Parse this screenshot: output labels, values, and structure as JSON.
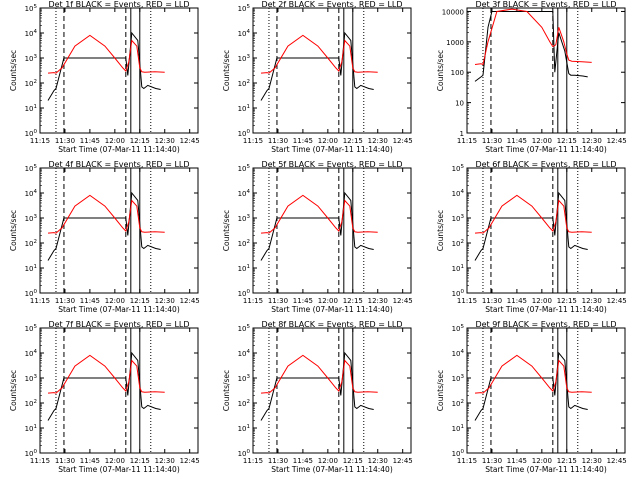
{
  "chart_data": [
    {
      "type": "line",
      "title": "Det 1f BLACK = Events, RED = LLD",
      "xlabel": "Start Time (07-Mar-11 11:14:40)",
      "ylabel": "Counts/sec",
      "y_scale": "log",
      "ylim": [
        1,
        100000
      ],
      "xlim": [
        "11:15",
        "12:50"
      ],
      "x_ticks": [
        "11:15",
        "11:30",
        "11:45",
        "12:00",
        "12:15",
        "12:30",
        "12:45"
      ],
      "y_ticks": [
        "10^0",
        "10^1",
        "10^2",
        "10^3",
        "10^4",
        "10^5"
      ],
      "series": [
        {
          "color": "#000000",
          "x": [
            11.33,
            11.39,
            11.41,
            11.49,
            12.11,
            12.13,
            12.17,
            12.23,
            12.27,
            12.29,
            12.33,
            12.41,
            12.46
          ],
          "y": [
            20,
            50,
            60,
            1000,
            1000,
            200,
            10000,
            5000,
            70,
            60,
            80,
            60,
            55
          ]
        },
        {
          "color": "#ff0000",
          "x": [
            11.33,
            11.39,
            11.41,
            11.47,
            11.6,
            11.75,
            11.9,
            12.0,
            12.08,
            12.11,
            12.14,
            12.17,
            12.22,
            12.25,
            12.27,
            12.3,
            12.4,
            12.5
          ],
          "y": [
            250,
            260,
            250,
            400,
            3000,
            8000,
            3000,
            1000,
            400,
            300,
            700,
            5000,
            3000,
            400,
            280,
            270,
            280,
            270
          ]
        }
      ]
    },
    {
      "type": "line",
      "title": "Det 2f BLACK = Events, RED = LLD",
      "xlabel": "Start Time (07-Mar-11 11:14:40)",
      "ylabel": "Counts/sec",
      "y_scale": "log",
      "ylim": [
        1,
        100000
      ],
      "xlim": [
        "11:15",
        "12:50"
      ],
      "x_ticks": [
        "11:15",
        "11:30",
        "11:45",
        "12:00",
        "12:15",
        "12:30",
        "12:45"
      ],
      "y_ticks": [
        "10^0",
        "10^1",
        "10^2",
        "10^3",
        "10^4",
        "10^5"
      ],
      "series": [
        {
          "color": "#000000",
          "x": [
            11.33,
            11.39,
            11.41,
            11.49,
            12.11,
            12.13,
            12.17,
            12.23,
            12.27,
            12.29,
            12.33,
            12.41,
            12.46
          ],
          "y": [
            20,
            50,
            60,
            1000,
            1000,
            200,
            10000,
            5000,
            70,
            60,
            80,
            60,
            55
          ]
        },
        {
          "color": "#ff0000",
          "x": [
            11.33,
            11.39,
            11.41,
            11.47,
            11.6,
            11.75,
            11.9,
            12.0,
            12.08,
            12.11,
            12.14,
            12.17,
            12.22,
            12.25,
            12.27,
            12.3,
            12.4,
            12.5
          ],
          "y": [
            250,
            260,
            250,
            400,
            3000,
            8000,
            3000,
            1000,
            400,
            300,
            700,
            5000,
            3000,
            400,
            280,
            270,
            280,
            270
          ]
        }
      ]
    },
    {
      "type": "line",
      "title": "Det 3f BLACK = Events, RED = LLD",
      "xlabel": "Start Time (07-Mar-11 11:14:40)",
      "ylabel": "Counts/sec",
      "y_scale": "log",
      "ylim": [
        1,
        13000
      ],
      "xlim": [
        "11:15",
        "12:50"
      ],
      "x_ticks": [
        "11:15",
        "11:30",
        "11:45",
        "12:00",
        "12:15",
        "12:30",
        "12:45"
      ],
      "y_ticks": [
        "1",
        "10",
        "100",
        "1000",
        "10000"
      ],
      "series": [
        {
          "color": "#000000",
          "x": [
            11.33,
            11.39,
            11.41,
            11.46,
            11.5,
            12.11,
            12.13,
            12.17,
            12.23,
            12.27,
            12.29,
            12.33,
            12.41,
            12.46
          ],
          "y": [
            50,
            70,
            80,
            3000,
            10000,
            10000,
            100,
            2000,
            500,
            90,
            80,
            80,
            75,
            70
          ]
        },
        {
          "color": "#ff0000",
          "x": [
            11.33,
            11.39,
            11.41,
            11.46,
            11.55,
            11.7,
            11.85,
            12.0,
            12.08,
            12.11,
            12.14,
            12.17,
            12.22,
            12.25,
            12.27,
            12.3,
            12.4,
            12.5
          ],
          "y": [
            180,
            190,
            180,
            1000,
            10000,
            12000,
            10000,
            3000,
            1000,
            700,
            800,
            3000,
            1000,
            400,
            250,
            230,
            220,
            210
          ]
        }
      ]
    },
    {
      "type": "line",
      "title": "Det 4f BLACK = Events, RED = LLD",
      "xlabel": "Start Time (07-Mar-11 11:14:40)",
      "ylabel": "Counts/sec",
      "y_scale": "log",
      "ylim": [
        1,
        100000
      ],
      "xlim": [
        "11:15",
        "12:50"
      ],
      "x_ticks": [
        "11:15",
        "11:30",
        "11:45",
        "12:00",
        "12:15",
        "12:30",
        "12:45"
      ],
      "y_ticks": [
        "10^0",
        "10^1",
        "10^2",
        "10^3",
        "10^4",
        "10^5"
      ],
      "series": [
        {
          "color": "#000000",
          "x": [
            11.33,
            11.39,
            11.41,
            11.49,
            12.11,
            12.13,
            12.17,
            12.23,
            12.27,
            12.29,
            12.33,
            12.41,
            12.46
          ],
          "y": [
            20,
            50,
            60,
            1000,
            1000,
            200,
            10000,
            5000,
            70,
            60,
            80,
            60,
            55
          ]
        },
        {
          "color": "#ff0000",
          "x": [
            11.33,
            11.39,
            11.41,
            11.47,
            11.6,
            11.75,
            11.9,
            12.0,
            12.08,
            12.11,
            12.14,
            12.17,
            12.22,
            12.25,
            12.27,
            12.3,
            12.4,
            12.5
          ],
          "y": [
            250,
            260,
            250,
            400,
            3000,
            8000,
            3000,
            1000,
            400,
            300,
            700,
            5000,
            3000,
            400,
            280,
            270,
            280,
            270
          ]
        }
      ]
    },
    {
      "type": "line",
      "title": "Det 5f BLACK = Events, RED = LLD",
      "xlabel": "Start Time (07-Mar-11 11:14:40)",
      "ylabel": "Counts/sec",
      "y_scale": "log",
      "ylim": [
        1,
        100000
      ],
      "xlim": [
        "11:15",
        "12:50"
      ],
      "x_ticks": [
        "11:15",
        "11:30",
        "11:45",
        "12:00",
        "12:15",
        "12:30",
        "12:45"
      ],
      "y_ticks": [
        "10^0",
        "10^1",
        "10^2",
        "10^3",
        "10^4",
        "10^5"
      ],
      "series": [
        {
          "color": "#000000",
          "x": [
            11.33,
            11.39,
            11.41,
            11.49,
            12.11,
            12.13,
            12.17,
            12.23,
            12.27,
            12.29,
            12.33,
            12.41,
            12.46
          ],
          "y": [
            20,
            50,
            60,
            1000,
            1000,
            200,
            10000,
            5000,
            70,
            60,
            80,
            60,
            55
          ]
        },
        {
          "color": "#ff0000",
          "x": [
            11.33,
            11.39,
            11.41,
            11.47,
            11.6,
            11.75,
            11.9,
            12.0,
            12.08,
            12.11,
            12.14,
            12.17,
            12.22,
            12.25,
            12.27,
            12.3,
            12.4,
            12.5
          ],
          "y": [
            250,
            260,
            250,
            400,
            3000,
            8000,
            3000,
            1000,
            400,
            300,
            700,
            5000,
            3000,
            400,
            280,
            270,
            280,
            270
          ]
        }
      ]
    },
    {
      "type": "line",
      "title": "Det 6f BLACK = Events, RED = LLD",
      "xlabel": "Start Time (07-Mar-11 11:14:40)",
      "ylabel": "Counts/sec",
      "y_scale": "log",
      "ylim": [
        1,
        100000
      ],
      "xlim": [
        "11:15",
        "12:50"
      ],
      "x_ticks": [
        "11:15",
        "11:30",
        "11:45",
        "12:00",
        "12:15",
        "12:30",
        "12:45"
      ],
      "y_ticks": [
        "10^0",
        "10^1",
        "10^2",
        "10^3",
        "10^4",
        "10^5"
      ],
      "series": [
        {
          "color": "#000000",
          "x": [
            11.33,
            11.39,
            11.41,
            11.49,
            12.11,
            12.13,
            12.17,
            12.23,
            12.27,
            12.29,
            12.33,
            12.41,
            12.46
          ],
          "y": [
            20,
            50,
            60,
            1000,
            1000,
            200,
            10000,
            5000,
            70,
            60,
            80,
            60,
            55
          ]
        },
        {
          "color": "#ff0000",
          "x": [
            11.33,
            11.39,
            11.41,
            11.47,
            11.6,
            11.75,
            11.9,
            12.0,
            12.08,
            12.11,
            12.14,
            12.17,
            12.22,
            12.25,
            12.27,
            12.3,
            12.4,
            12.5
          ],
          "y": [
            250,
            260,
            250,
            400,
            3000,
            8000,
            3000,
            1000,
            400,
            300,
            700,
            5000,
            3000,
            400,
            280,
            270,
            280,
            270
          ]
        }
      ]
    },
    {
      "type": "line",
      "title": "Det 7f BLACK = Events, RED = LLD",
      "xlabel": "Start Time (07-Mar-11 11:14:40)",
      "ylabel": "Counts/sec",
      "y_scale": "log",
      "ylim": [
        1,
        100000
      ],
      "xlim": [
        "11:15",
        "12:50"
      ],
      "x_ticks": [
        "11:15",
        "11:30",
        "11:45",
        "12:00",
        "12:15",
        "12:30",
        "12:45"
      ],
      "y_ticks": [
        "10^0",
        "10^1",
        "10^2",
        "10^3",
        "10^4",
        "10^5"
      ],
      "series": [
        {
          "color": "#000000",
          "x": [
            11.33,
            11.39,
            11.41,
            11.49,
            12.11,
            12.13,
            12.17,
            12.23,
            12.27,
            12.29,
            12.33,
            12.41,
            12.46
          ],
          "y": [
            20,
            50,
            60,
            1000,
            1000,
            200,
            10000,
            5000,
            70,
            60,
            80,
            60,
            55
          ]
        },
        {
          "color": "#ff0000",
          "x": [
            11.33,
            11.39,
            11.41,
            11.47,
            11.6,
            11.75,
            11.9,
            12.0,
            12.08,
            12.11,
            12.14,
            12.17,
            12.22,
            12.25,
            12.27,
            12.3,
            12.4,
            12.5
          ],
          "y": [
            250,
            260,
            250,
            400,
            3000,
            8000,
            3000,
            1000,
            400,
            300,
            700,
            5000,
            3000,
            400,
            280,
            270,
            280,
            270
          ]
        }
      ]
    },
    {
      "type": "line",
      "title": "Det 8f BLACK = Events, RED = LLD",
      "xlabel": "Start Time (07-Mar-11 11:14:40)",
      "ylabel": "Counts/sec",
      "y_scale": "log",
      "ylim": [
        1,
        100000
      ],
      "xlim": [
        "11:15",
        "12:50"
      ],
      "x_ticks": [
        "11:15",
        "11:30",
        "11:45",
        "12:00",
        "12:15",
        "12:30",
        "12:45"
      ],
      "y_ticks": [
        "10^0",
        "10^1",
        "10^2",
        "10^3",
        "10^4",
        "10^5"
      ],
      "series": [
        {
          "color": "#000000",
          "x": [
            11.33,
            11.39,
            11.41,
            11.49,
            12.11,
            12.13,
            12.17,
            12.23,
            12.27,
            12.29,
            12.33,
            12.41,
            12.46
          ],
          "y": [
            20,
            50,
            60,
            1000,
            1000,
            200,
            10000,
            5000,
            70,
            60,
            80,
            60,
            55
          ]
        },
        {
          "color": "#ff0000",
          "x": [
            11.33,
            11.39,
            11.41,
            11.47,
            11.6,
            11.75,
            11.9,
            12.0,
            12.08,
            12.11,
            12.14,
            12.17,
            12.22,
            12.25,
            12.27,
            12.3,
            12.4,
            12.5
          ],
          "y": [
            250,
            260,
            250,
            400,
            3000,
            8000,
            3000,
            1000,
            400,
            300,
            700,
            5000,
            3000,
            400,
            280,
            270,
            280,
            270
          ]
        }
      ]
    },
    {
      "type": "line",
      "title": "Det 9f BLACK = Events, RED = LLD",
      "xlabel": "Start Time (07-Mar-11 11:14:40)",
      "ylabel": "Counts/sec",
      "y_scale": "log",
      "ylim": [
        1,
        100000
      ],
      "xlim": [
        "11:15",
        "12:50"
      ],
      "x_ticks": [
        "11:15",
        "11:30",
        "11:45",
        "12:00",
        "12:15",
        "12:30",
        "12:45"
      ],
      "y_ticks": [
        "10^0",
        "10^1",
        "10^2",
        "10^3",
        "10^4",
        "10^5"
      ],
      "series": [
        {
          "color": "#000000",
          "x": [
            11.33,
            11.39,
            11.41,
            11.49,
            12.11,
            12.13,
            12.17,
            12.23,
            12.27,
            12.29,
            12.33,
            12.41,
            12.46
          ],
          "y": [
            20,
            50,
            60,
            1000,
            1000,
            200,
            10000,
            5000,
            70,
            60,
            80,
            60,
            55
          ]
        },
        {
          "color": "#ff0000",
          "x": [
            11.33,
            11.39,
            11.41,
            11.47,
            11.6,
            11.75,
            11.9,
            12.0,
            12.08,
            12.11,
            12.14,
            12.17,
            12.22,
            12.25,
            12.27,
            12.3,
            12.4,
            12.5
          ],
          "y": [
            250,
            260,
            250,
            400,
            3000,
            8000,
            3000,
            1000,
            400,
            300,
            700,
            5000,
            3000,
            400,
            280,
            270,
            280,
            270
          ]
        }
      ]
    }
  ]
}
